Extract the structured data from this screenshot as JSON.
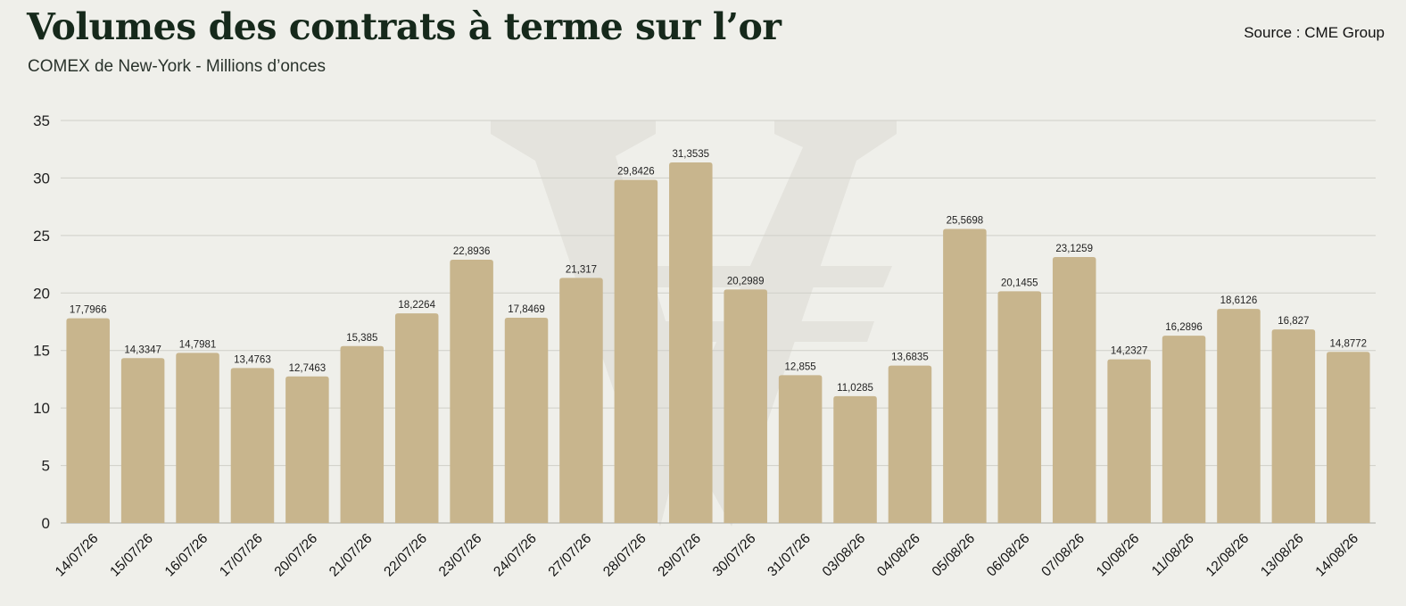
{
  "header": {
    "title": "Volumes des contrats à terme sur l’or",
    "subtitle": "COMEX de New-York - Millions d’onces",
    "source": "Source : CME Group"
  },
  "colors": {
    "background": "#efefea",
    "bar": "#c8b58d",
    "grid": "#cfcfc8",
    "watermark": "#e4e3dd"
  },
  "chart_data": {
    "type": "bar",
    "title": "Volumes des contrats à terme sur l’or",
    "subtitle": "COMEX de New-York - Millions d’onces",
    "xlabel": "",
    "ylabel": "",
    "ylim": [
      0,
      35
    ],
    "yticks": [
      0,
      5,
      10,
      15,
      20,
      25,
      30,
      35
    ],
    "grid": true,
    "categories": [
      "14/07/26",
      "15/07/26",
      "16/07/26",
      "17/07/26",
      "20/07/26",
      "21/07/26",
      "22/07/26",
      "23/07/26",
      "24/07/26",
      "27/07/26",
      "28/07/26",
      "29/07/26",
      "30/07/26",
      "31/07/26",
      "03/08/26",
      "04/08/26",
      "05/08/26",
      "06/08/26",
      "07/08/26",
      "10/08/26",
      "11/08/26",
      "12/08/26",
      "13/08/26",
      "14/08/26"
    ],
    "values": [
      17.7966,
      14.3347,
      14.7981,
      13.4763,
      12.7463,
      15.385,
      18.2264,
      22.8936,
      17.8469,
      21.317,
      29.8426,
      31.3535,
      20.2989,
      12.855,
      11.0285,
      13.6835,
      25.5698,
      20.1455,
      23.1259,
      14.2327,
      16.2896,
      18.6126,
      16.827,
      14.8772
    ],
    "value_labels": [
      "17,7966",
      "14,3347",
      "14,7981",
      "13,4763",
      "12,7463",
      "15,385",
      "18,2264",
      "22,8936",
      "17,8469",
      "21,317",
      "29,8426",
      "31,3535",
      "20,2989",
      "12,855",
      "11,0285",
      "13,6835",
      "25,5698",
      "20,1455",
      "23,1259",
      "14,2327",
      "16,2896",
      "18,6126",
      "16,827",
      "14,8772"
    ]
  }
}
